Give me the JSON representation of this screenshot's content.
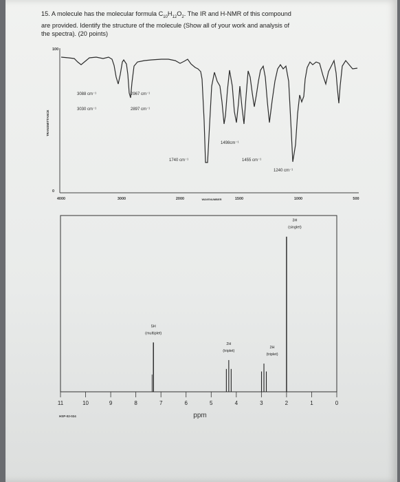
{
  "question": {
    "number": "15.",
    "line1_a": "A molecule has the molecular formula C",
    "formula_c": "10",
    "formula_h_label": "H",
    "formula_h": "12",
    "formula_o_label": "O",
    "formula_o": "2",
    "line1_b": ". The IR and H-NMR of this compound",
    "line2": "are provided. Identify the structure of the molecule (Show all of your work and analysis of",
    "line3": "the spectra). (20 points)"
  },
  "ir": {
    "y_top_label": "100",
    "y_bottom_label": "0",
    "y_axis_label": "TRANSMITTANCE",
    "x_title": "WAVENUMBER",
    "x_ticks": [
      "4000",
      "3000",
      "2000",
      "1500",
      "1000",
      "500"
    ],
    "annotations": [
      {
        "text": "3088 cm⁻¹"
      },
      {
        "text": "3030 cm⁻¹"
      },
      {
        "text": "2967 cm⁻¹"
      },
      {
        "text": "2897 cm⁻¹"
      },
      {
        "text": "1498cm⁻¹"
      },
      {
        "text": "1740 cm⁻¹"
      },
      {
        "text": "1455 cm⁻¹"
      },
      {
        "text": "1240 cm⁻¹"
      }
    ]
  },
  "nmr": {
    "x_ticks": [
      "11",
      "10",
      "9",
      "8",
      "7",
      "6",
      "5",
      "4",
      "3",
      "2",
      "1",
      "0"
    ],
    "x_title": "ppm",
    "code": "HSP-02-024",
    "peaks": [
      {
        "ppm": 7.3,
        "height": 0.28,
        "label1": "5H",
        "label2": "(multiplet)"
      },
      {
        "ppm": 4.3,
        "height": 0.18,
        "label1": "2H",
        "label2": "(triplet)"
      },
      {
        "ppm": 2.9,
        "height": 0.16,
        "label1": "2H",
        "label2": "(triplet)"
      },
      {
        "ppm": 2.0,
        "height": 0.88,
        "label1": "3H",
        "label2": "(singlet)"
      }
    ]
  }
}
